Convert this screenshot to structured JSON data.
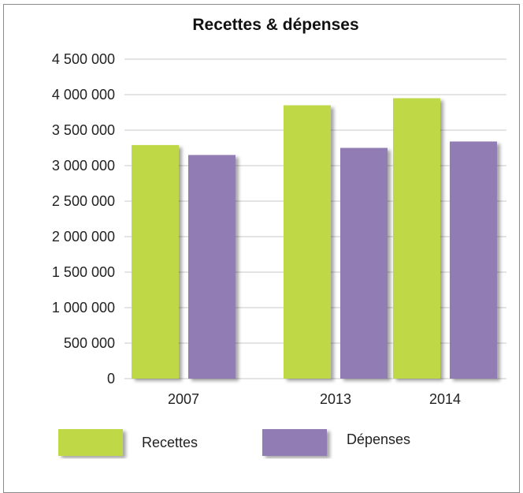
{
  "chart_data": {
    "type": "bar",
    "title": "Recettes & dépenses",
    "categories": [
      "2007",
      "2013",
      "2014"
    ],
    "series": [
      {
        "name": "Recettes",
        "color": "#bfd844",
        "values": [
          3290000,
          3850000,
          3950000
        ]
      },
      {
        "name": "Dépenses",
        "color": "#927cb4",
        "values": [
          3150000,
          3250000,
          3340000
        ]
      }
    ],
    "ylim": [
      0,
      4500000
    ],
    "yticks": [
      0,
      500000,
      1000000,
      1500000,
      2000000,
      2500000,
      3000000,
      3500000,
      4000000,
      4500000
    ],
    "ytick_labels": [
      "0",
      "500 000",
      "1 000 000",
      "1 500 000",
      "2 000 000",
      "2 500 000",
      "3 000 000",
      "3 500 000",
      "4 000 000",
      "4 500 000"
    ],
    "grid": true,
    "legend_position": "bottom"
  }
}
